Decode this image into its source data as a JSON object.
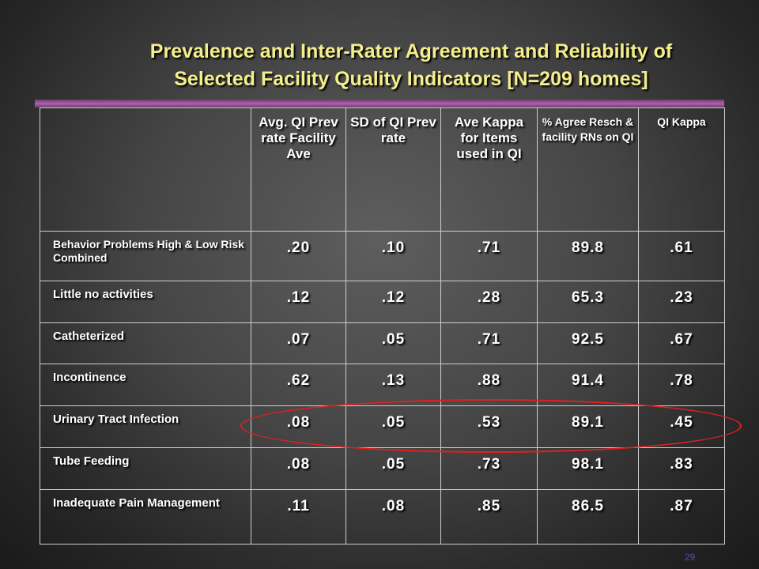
{
  "title": {
    "line1": "Prevalence and Inter-Rater Agreement and Reliability of",
    "line2": "Selected Facility Quality Indicators  [N=209 homes]"
  },
  "table": {
    "headers": [
      "",
      "Avg. QI Prev rate Facility Ave",
      "SD of QI Prev rate",
      "Ave Kappa for Items used in QI",
      "% Agree Resch & facility RNs on QI",
      "QI Kappa"
    ],
    "rows": [
      {
        "label": "Behavior Problems High & Low Risk Combined",
        "values": [
          ".20",
          ".10",
          ".71",
          "89.8",
          ".61"
        ]
      },
      {
        "label": "Little no activities",
        "values": [
          ".12",
          ".12",
          ".28",
          "65.3",
          ".23"
        ]
      },
      {
        "label": "Catheterized",
        "values": [
          ".07",
          ".05",
          ".71",
          "92.5",
          ".67"
        ]
      },
      {
        "label": "Incontinence",
        "values": [
          ".62",
          ".13",
          ".88",
          "91.4",
          ".78"
        ]
      },
      {
        "label": "Urinary Tract Infection",
        "values": [
          ".08",
          ".05",
          ".53",
          "89.1",
          ".45"
        ]
      },
      {
        "label": "Tube Feeding",
        "values": [
          ".08",
          ".05",
          ".73",
          "98.1",
          ".83"
        ]
      },
      {
        "label": "Inadequate Pain Management",
        "values": [
          ".11",
          ".08",
          ".85",
          "86.5",
          ".87"
        ]
      }
    ]
  },
  "highlight_color": "#e02020",
  "page_number": "29"
}
